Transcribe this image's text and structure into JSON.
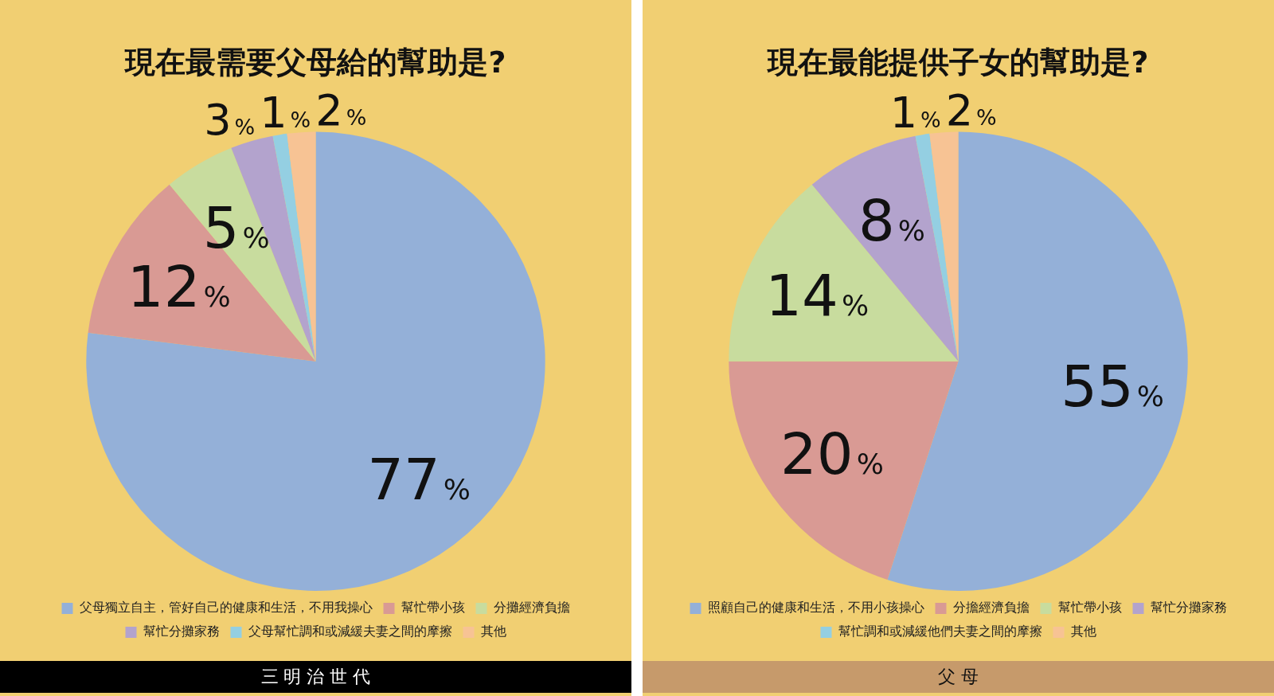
{
  "chart_data": [
    {
      "type": "pie",
      "title": "現在最需要父母給的幫助是?",
      "categories": [
        "父母獨立自主，管好自己的健康和生活，不用我操心",
        "幫忙帶小孩",
        "分攤經濟負擔",
        "幫忙分攤家務",
        "父母幫忙調和或減緩夫妻之間的摩擦",
        "其他"
      ],
      "values": [
        77,
        12,
        5,
        3,
        1,
        2
      ],
      "value_labels": [
        "77%",
        "12%",
        "5%",
        "3%",
        "1%",
        "2%"
      ],
      "colors": [
        "#94b0d8",
        "#d99a94",
        "#c8dc9e",
        "#b3a3cd",
        "#94cfe2",
        "#f7c394"
      ],
      "legend": "bottom",
      "annotations": [
        "三 明 治 世 代"
      ]
    },
    {
      "type": "pie",
      "title": "現在最能提供子女的幫助是?",
      "categories": [
        "照顧自己的健康和生活，不用小孩操心",
        "分擔經濟負擔",
        "幫忙帶小孩",
        "幫忙分攤家務",
        "幫忙調和或減緩他們夫妻之間的摩擦",
        "其他"
      ],
      "values": [
        55,
        20,
        14,
        8,
        1,
        2
      ],
      "value_labels": [
        "55%",
        "20%",
        "14%",
        "8%",
        "1%",
        "2%"
      ],
      "colors": [
        "#94b0d8",
        "#d99a94",
        "#c8dc9e",
        "#b3a3cd",
        "#94cfe2",
        "#f7c394"
      ],
      "legend": "bottom",
      "annotations": [
        "父 母"
      ]
    }
  ]
}
